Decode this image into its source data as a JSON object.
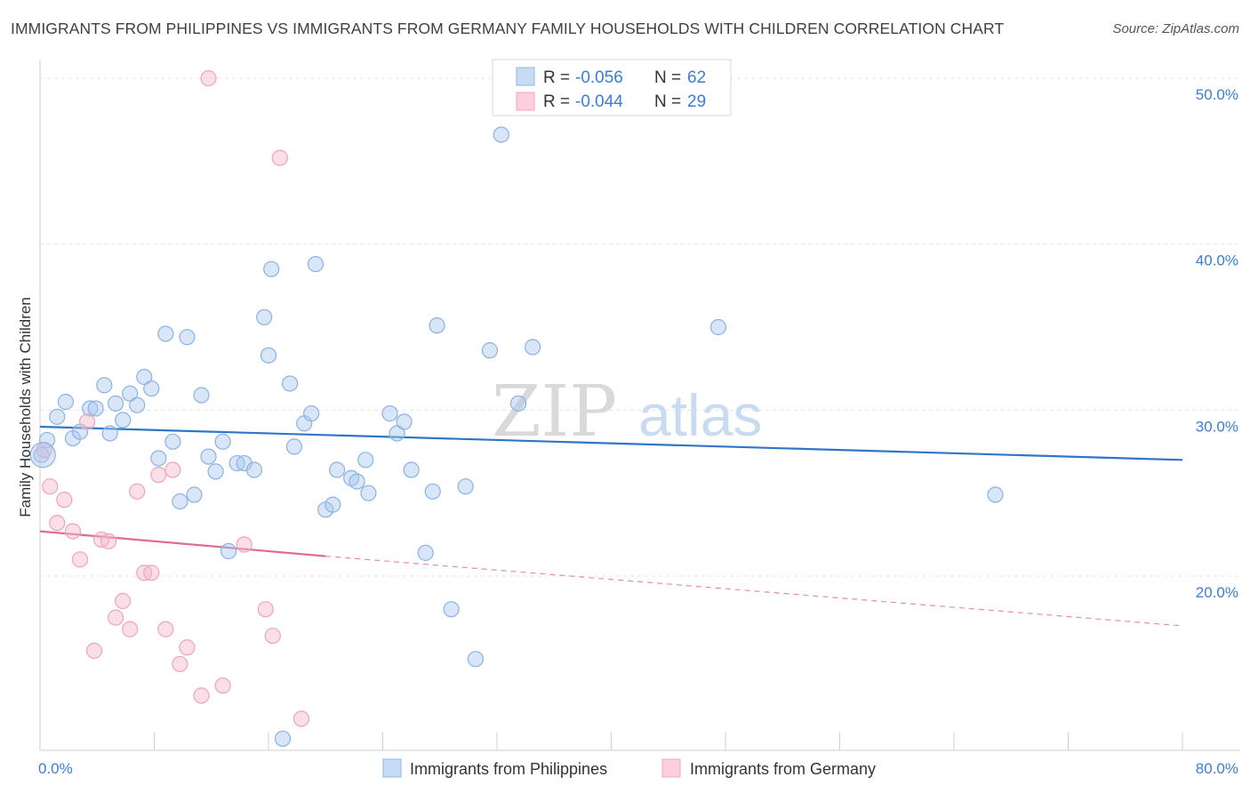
{
  "title": "IMMIGRANTS FROM PHILIPPINES VS IMMIGRANTS FROM GERMANY FAMILY HOUSEHOLDS WITH CHILDREN CORRELATION CHART",
  "source": "Source: ZipAtlas.com",
  "watermark": {
    "zip": "ZIP",
    "atlas": "atlas"
  },
  "colors": {
    "blue": "#a9c8ef",
    "blue_line": "#2f75c8",
    "pink": "#f5b9cb",
    "pink_line": "#e06b93",
    "axis_label": "#3b7dd8"
  },
  "legend": {
    "r_label": "R =",
    "n_label": "N =",
    "rows": [
      {
        "r": "-0.056",
        "n": "62"
      },
      {
        "r": "-0.044",
        "n": "29"
      }
    ]
  },
  "chart_data": {
    "type": "scatter",
    "title": "IMMIGRANTS FROM PHILIPPINES VS IMMIGRANTS FROM GERMANY FAMILY HOUSEHOLDS WITH CHILDREN CORRELATION CHART",
    "xlabel": "",
    "ylabel": "Family Households with Children",
    "xlim": [
      0,
      80
    ],
    "ylim": [
      9.5,
      51.5
    ],
    "x_tick_labels": [
      "0.0%",
      "80.0%"
    ],
    "y_tick_labels": [
      "20.0%",
      "30.0%",
      "40.0%",
      "50.0%"
    ],
    "y_ticks": [
      20,
      30,
      40,
      50
    ],
    "grid": true,
    "legend_position": "top-center",
    "series": [
      {
        "name": "Immigrants from Philippines",
        "color": "#a9c8ef",
        "trend": {
          "x": [
            0,
            80
          ],
          "y": [
            29.0,
            27.0
          ]
        },
        "points": [
          [
            0.1,
            27.3
          ],
          [
            0.5,
            28.2
          ],
          [
            1.2,
            29.6
          ],
          [
            1.8,
            30.5
          ],
          [
            2.3,
            28.3
          ],
          [
            2.8,
            28.7
          ],
          [
            3.5,
            30.1
          ],
          [
            3.9,
            30.1
          ],
          [
            4.5,
            31.5
          ],
          [
            4.9,
            28.6
          ],
          [
            5.3,
            30.4
          ],
          [
            5.8,
            29.4
          ],
          [
            6.3,
            31.0
          ],
          [
            6.8,
            30.3
          ],
          [
            7.3,
            32.0
          ],
          [
            7.8,
            31.3
          ],
          [
            8.3,
            27.1
          ],
          [
            8.8,
            34.6
          ],
          [
            9.3,
            28.1
          ],
          [
            9.8,
            24.5
          ],
          [
            10.3,
            34.4
          ],
          [
            10.8,
            24.9
          ],
          [
            11.3,
            30.9
          ],
          [
            11.8,
            27.2
          ],
          [
            12.3,
            26.3
          ],
          [
            12.8,
            28.1
          ],
          [
            13.2,
            21.5
          ],
          [
            13.8,
            26.8
          ],
          [
            14.3,
            26.8
          ],
          [
            15.0,
            26.4
          ],
          [
            15.7,
            35.6
          ],
          [
            16.2,
            38.5
          ],
          [
            16.0,
            33.3
          ],
          [
            17.0,
            10.2
          ],
          [
            17.5,
            31.6
          ],
          [
            17.8,
            27.8
          ],
          [
            18.5,
            29.2
          ],
          [
            19.0,
            29.8
          ],
          [
            19.3,
            38.8
          ],
          [
            20.0,
            24.0
          ],
          [
            20.5,
            24.3
          ],
          [
            20.8,
            26.4
          ],
          [
            21.8,
            25.9
          ],
          [
            22.2,
            25.7
          ],
          [
            22.8,
            27.0
          ],
          [
            23.0,
            25.0
          ],
          [
            24.5,
            29.8
          ],
          [
            25.0,
            28.6
          ],
          [
            25.5,
            29.3
          ],
          [
            26.0,
            26.4
          ],
          [
            27.0,
            21.4
          ],
          [
            27.5,
            25.1
          ],
          [
            27.8,
            35.1
          ],
          [
            28.8,
            18.0
          ],
          [
            29.8,
            25.4
          ],
          [
            30.5,
            15.0
          ],
          [
            31.5,
            33.6
          ],
          [
            32.3,
            46.6
          ],
          [
            33.5,
            30.4
          ],
          [
            34.5,
            33.8
          ],
          [
            47.5,
            35.0
          ],
          [
            66.9,
            24.9
          ]
        ]
      },
      {
        "name": "Immigrants from Germany",
        "color": "#f5b9cb",
        "trend": {
          "x": [
            0,
            20
          ],
          "y": [
            22.7,
            21.2
          ],
          "dashed_to": {
            "x": 80,
            "y": 17.0
          }
        },
        "points": [
          [
            0.3,
            27.6
          ],
          [
            0.7,
            25.4
          ],
          [
            1.2,
            23.2
          ],
          [
            1.7,
            24.6
          ],
          [
            2.3,
            22.7
          ],
          [
            2.8,
            21.0
          ],
          [
            3.3,
            29.3
          ],
          [
            3.8,
            15.5
          ],
          [
            4.3,
            22.2
          ],
          [
            4.8,
            22.1
          ],
          [
            5.3,
            17.5
          ],
          [
            5.8,
            18.5
          ],
          [
            6.3,
            16.8
          ],
          [
            6.8,
            25.1
          ],
          [
            7.3,
            20.2
          ],
          [
            7.8,
            20.2
          ],
          [
            8.3,
            26.1
          ],
          [
            8.8,
            16.8
          ],
          [
            9.3,
            26.4
          ],
          [
            9.8,
            14.7
          ],
          [
            10.3,
            15.7
          ],
          [
            11.3,
            12.8
          ],
          [
            11.8,
            50.0
          ],
          [
            12.8,
            13.4
          ],
          [
            14.3,
            21.9
          ],
          [
            15.8,
            18.0
          ],
          [
            16.3,
            16.4
          ],
          [
            16.8,
            45.2
          ],
          [
            18.3,
            11.4
          ]
        ]
      }
    ]
  }
}
